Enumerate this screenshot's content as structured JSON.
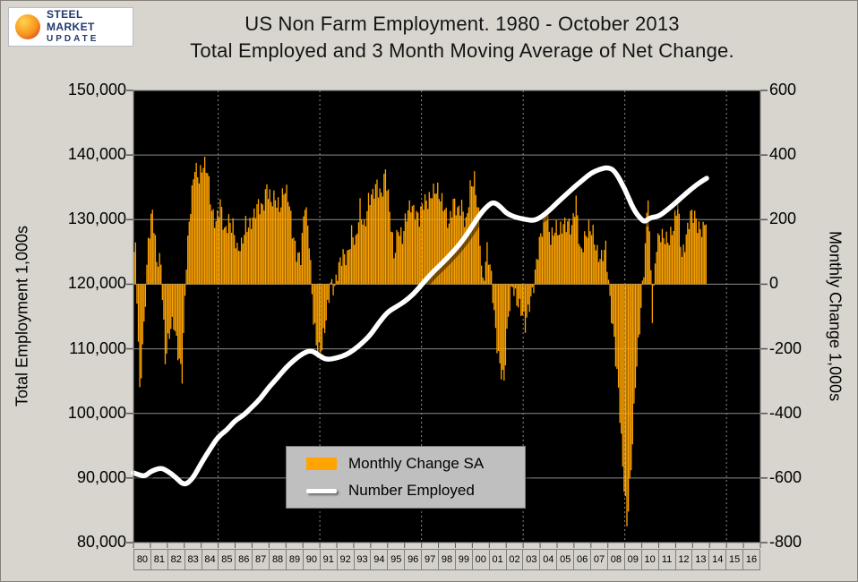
{
  "logo": {
    "text_top": "STEEL MARKET",
    "text_bottom": "UPDATE"
  },
  "title": {
    "line1": "US Non Farm Employment. 1980 - October 2013",
    "line2": "Total Employed and 3 Month Moving Average of Net Change."
  },
  "chart_data": {
    "type": "combo",
    "title": "US Non Farm Employment. 1980 - October 2013",
    "subtitle": "Total Employed and 3 Month Moving Average of Net Change.",
    "left_axis": {
      "label": "Total Employment 1,000s",
      "min": 80000,
      "max": 150000,
      "step": 10000,
      "tick_labels": [
        "150,000",
        "140,000",
        "130,000",
        "120,000",
        "110,000",
        "100,000",
        "90,000",
        "80,000"
      ]
    },
    "right_axis": {
      "label": "Monthly Change 1,000s",
      "min": -800,
      "max": 600,
      "step": 200,
      "tick_labels": [
        "600",
        "400",
        "200",
        "0",
        "-200",
        "-400",
        "-600",
        "-800"
      ]
    },
    "x_axis": {
      "axis_start": 1980,
      "axis_end": 2017,
      "grid_years": [
        1985,
        1991,
        1997,
        2003,
        2009,
        2015
      ],
      "year_labels": [
        "80",
        "81",
        "82",
        "83",
        "84",
        "85",
        "86",
        "87",
        "88",
        "89",
        "90",
        "91",
        "92",
        "93",
        "94",
        "95",
        "96",
        "97",
        "98",
        "99",
        "00",
        "01",
        "02",
        "03",
        "04",
        "05",
        "06",
        "07",
        "08",
        "09",
        "10",
        "11",
        "12",
        "13",
        "14",
        "15",
        "16"
      ]
    },
    "colors": {
      "bar": "#FFA400",
      "line": "#FFFFFF",
      "plot_bg": "#000000",
      "grid": "#8C8C8C",
      "page_bg": "#D8D5CE",
      "legend_bg": "#BFBFBF"
    },
    "series": [
      {
        "name": "Monthly Change SA",
        "type": "bar",
        "axis": "right",
        "start_year": 1980,
        "interval_months": 3,
        "n_months": 406,
        "values": [
          100,
          -350,
          -120,
          150,
          220,
          60,
          80,
          -220,
          -160,
          -130,
          -200,
          -270,
          60,
          230,
          380,
          340,
          360,
          340,
          240,
          200,
          240,
          150,
          210,
          190,
          90,
          110,
          200,
          190,
          200,
          240,
          250,
          310,
          240,
          260,
          250,
          300,
          260,
          160,
          110,
          90,
          240,
          130,
          -90,
          -210,
          -210,
          -110,
          20,
          -10,
          40,
          90,
          100,
          160,
          110,
          240,
          190,
          260,
          260,
          310,
          290,
          350,
          210,
          90,
          190,
          140,
          200,
          250,
          240,
          200,
          240,
          260,
          300,
          290,
          250,
          240,
          200,
          250,
          210,
          250,
          200,
          290,
          310,
          220,
          10,
          100,
          10,
          -140,
          -240,
          -310,
          -110,
          10,
          -40,
          -90,
          -140,
          -50,
          10,
          90,
          160,
          250,
          150,
          160,
          150,
          200,
          200,
          160,
          250,
          110,
          150,
          160,
          150,
          110,
          90,
          100,
          -60,
          -160,
          -320,
          -580,
          -750,
          -550,
          -300,
          -150,
          40,
          300,
          -90,
          110,
          150,
          160,
          140,
          160,
          250,
          100,
          150,
          200,
          210,
          190,
          170,
          200
        ]
      },
      {
        "name": "Number Employed",
        "type": "line",
        "axis": "left",
        "points": [
          [
            1980.0,
            90800
          ],
          [
            1980.4,
            90400
          ],
          [
            1980.7,
            90300
          ],
          [
            1981.0,
            91000
          ],
          [
            1981.6,
            91600
          ],
          [
            1982.0,
            91100
          ],
          [
            1982.5,
            90100
          ],
          [
            1983.0,
            88800
          ],
          [
            1983.5,
            89900
          ],
          [
            1984.0,
            92300
          ],
          [
            1984.5,
            94400
          ],
          [
            1985.0,
            96400
          ],
          [
            1985.5,
            97400
          ],
          [
            1986.0,
            98900
          ],
          [
            1986.5,
            99700
          ],
          [
            1987.0,
            101000
          ],
          [
            1987.5,
            102300
          ],
          [
            1988.0,
            104100
          ],
          [
            1988.5,
            105500
          ],
          [
            1989.0,
            107100
          ],
          [
            1989.5,
            108300
          ],
          [
            1990.0,
            109300
          ],
          [
            1990.5,
            109800
          ],
          [
            1991.0,
            108900
          ],
          [
            1991.4,
            108300
          ],
          [
            1992.0,
            108600
          ],
          [
            1992.5,
            109000
          ],
          [
            1993.0,
            109800
          ],
          [
            1993.5,
            110900
          ],
          [
            1994.0,
            112200
          ],
          [
            1994.5,
            114100
          ],
          [
            1995.0,
            115700
          ],
          [
            1995.5,
            116500
          ],
          [
            1996.0,
            117300
          ],
          [
            1996.5,
            118400
          ],
          [
            1997.0,
            119900
          ],
          [
            1997.5,
            121400
          ],
          [
            1998.0,
            122700
          ],
          [
            1998.5,
            124000
          ],
          [
            1999.0,
            125400
          ],
          [
            1999.5,
            127000
          ],
          [
            2000.0,
            129000
          ],
          [
            2000.5,
            131000
          ],
          [
            2001.0,
            132400
          ],
          [
            2001.3,
            132700
          ],
          [
            2001.7,
            131900
          ],
          [
            2002.0,
            131000
          ],
          [
            2002.5,
            130400
          ],
          [
            2003.0,
            130100
          ],
          [
            2003.6,
            129800
          ],
          [
            2004.0,
            130300
          ],
          [
            2004.5,
            131300
          ],
          [
            2005.0,
            132600
          ],
          [
            2005.5,
            133800
          ],
          [
            2006.0,
            135000
          ],
          [
            2006.5,
            136100
          ],
          [
            2007.0,
            137200
          ],
          [
            2007.5,
            137800
          ],
          [
            2008.0,
            138100
          ],
          [
            2008.4,
            137600
          ],
          [
            2009.0,
            134800
          ],
          [
            2009.5,
            131600
          ],
          [
            2010.0,
            129900
          ],
          [
            2010.2,
            129700
          ],
          [
            2010.5,
            130300
          ],
          [
            2011.0,
            130500
          ],
          [
            2011.5,
            131500
          ],
          [
            2012.0,
            132600
          ],
          [
            2012.5,
            133800
          ],
          [
            2013.0,
            134900
          ],
          [
            2013.4,
            135700
          ],
          [
            2013.83,
            136400
          ]
        ]
      }
    ]
  }
}
